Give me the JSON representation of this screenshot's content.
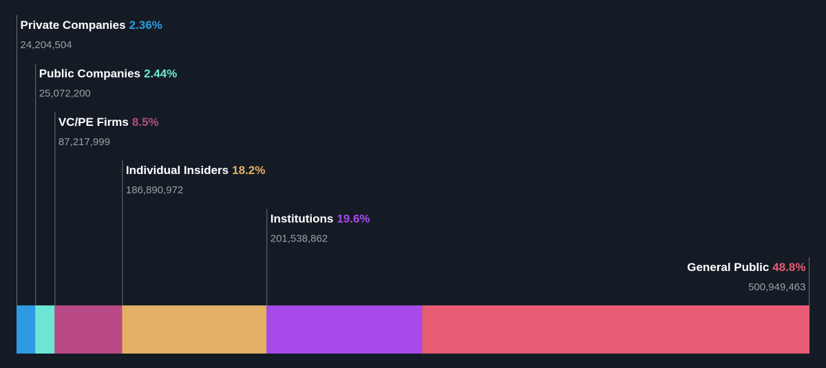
{
  "chart_data": {
    "type": "bar",
    "subtype": "stacked-horizontal-ownership",
    "segments": [
      {
        "label": "Private Companies",
        "percent": 2.36,
        "percent_label": "2.36%",
        "shares": 24204504,
        "shares_label": "24,204,504",
        "color": "#2d9be4"
      },
      {
        "label": "Public Companies",
        "percent": 2.44,
        "percent_label": "2.44%",
        "shares": 25072200,
        "shares_label": "25,072,200",
        "color": "#6ee6d5"
      },
      {
        "label": "VC/PE Firms",
        "percent": 8.5,
        "percent_label": "8.5%",
        "shares": 87217999,
        "shares_label": "87,217,999",
        "color": "#b94a86"
      },
      {
        "label": "Individual Insiders",
        "percent": 18.2,
        "percent_label": "18.2%",
        "shares": 186890972,
        "shares_label": "186,890,972",
        "color": "#e4b066"
      },
      {
        "label": "Institutions",
        "percent": 19.6,
        "percent_label": "19.6%",
        "shares": 201538862,
        "shares_label": "201,538,862",
        "color": "#a64aec"
      },
      {
        "label": "General Public",
        "percent": 48.8,
        "percent_label": "48.8%",
        "shares": 500949463,
        "shares_label": "500,949,463",
        "color": "#e85b74"
      }
    ]
  }
}
